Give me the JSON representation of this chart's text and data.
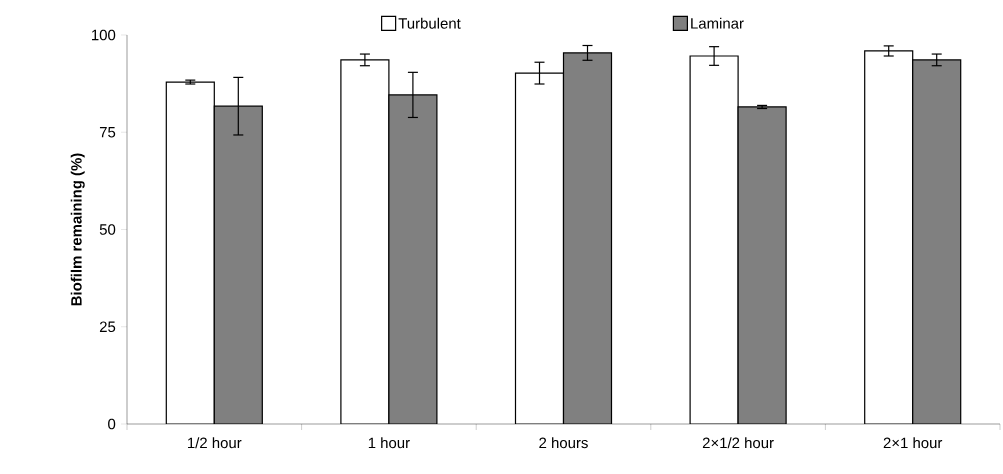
{
  "chart_data": {
    "type": "bar",
    "ylabel": "Biofilm remaining (%)",
    "categories": [
      "1/2 hour",
      "1 hour",
      "2 hours",
      "2×1/2 hour",
      "2×1 hour"
    ],
    "series": [
      {
        "name": "Turbulent",
        "color": "#ffffff",
        "values": [
          87.9,
          93.6,
          90.2,
          94.6,
          95.9
        ],
        "errors": [
          0.5,
          1.5,
          2.8,
          2.4,
          1.3
        ]
      },
      {
        "name": "Laminar",
        "color": "#808080",
        "values": [
          81.7,
          84.6,
          95.4,
          81.5,
          93.6
        ],
        "errors": [
          7.4,
          5.8,
          1.9,
          0.4,
          1.5
        ]
      }
    ],
    "ylim": [
      0,
      100
    ],
    "yticks": [
      0,
      25,
      50,
      75,
      100
    ],
    "legend": "top"
  }
}
